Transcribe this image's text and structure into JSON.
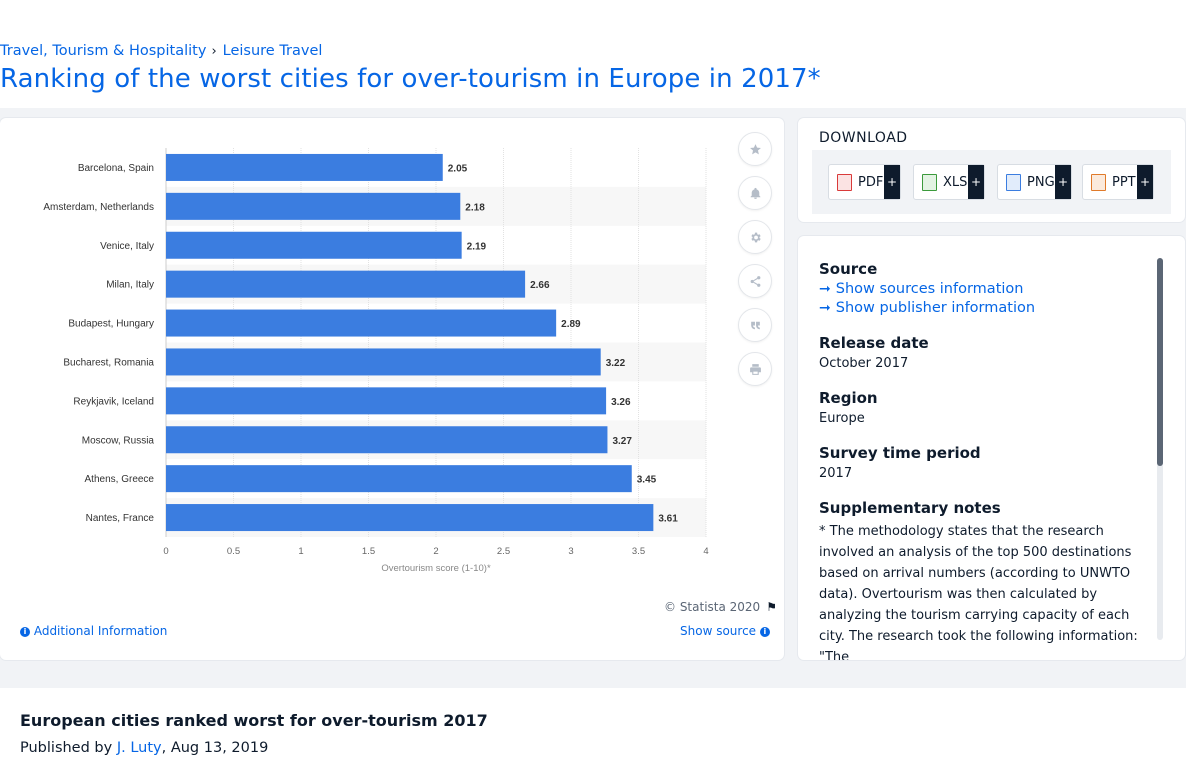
{
  "breadcrumb": {
    "item1": "Travel, Tourism & Hospitality",
    "separator": "›",
    "item2": "Leisure Travel"
  },
  "page_title": "Ranking of the worst cities for over-tourism in Europe in 2017*",
  "chart_data": {
    "type": "bar",
    "orientation": "horizontal",
    "categories": [
      "Barcelona, Spain",
      "Amsterdam, Netherlands",
      "Venice, Italy",
      "Milan, Italy",
      "Budapest, Hungary",
      "Bucharest, Romania",
      "Reykjavik, Iceland",
      "Moscow, Russia",
      "Athens, Greece",
      "Nantes, France"
    ],
    "values": [
      2.05,
      2.18,
      2.19,
      2.66,
      2.89,
      3.22,
      3.26,
      3.27,
      3.45,
      3.61
    ],
    "value_labels": [
      "2.05",
      "2.18",
      "2.19",
      "2.66",
      "2.89",
      "3.22",
      "3.26",
      "3.27",
      "3.45",
      "3.61"
    ],
    "xlabel": "Overtourism score (1-10)*",
    "ylabel": "",
    "xlim": [
      0,
      4
    ],
    "x_ticks": [
      0,
      0.5,
      1,
      1.5,
      2,
      2.5,
      3,
      3.5,
      4
    ],
    "x_tick_labels": [
      "0",
      "0.5",
      "1",
      "1.5",
      "2",
      "2.5",
      "3",
      "3.5",
      "4"
    ],
    "grid": true,
    "bar_color": "#3b7de0"
  },
  "chart_footer": {
    "copyright": "© Statista 2020",
    "additional_info": "Additional Information",
    "show_source": "Show source"
  },
  "tools": [
    "star-icon",
    "bell-icon",
    "gear-icon",
    "share-icon",
    "quote-icon",
    "print-icon"
  ],
  "download": {
    "title": "DOWNLOAD",
    "buttons": [
      {
        "label": "PDF",
        "icon": "pdf-file-icon",
        "color": "#d93a3a"
      },
      {
        "label": "XLS",
        "icon": "xls-file-icon",
        "color": "#3b9a3b"
      },
      {
        "label": "PNG",
        "icon": "png-file-icon",
        "color": "#3b7de0"
      },
      {
        "label": "PPT",
        "icon": "ppt-file-icon",
        "color": "#e07a2a"
      }
    ],
    "plus": "+"
  },
  "meta": {
    "source_heading": "Source",
    "show_sources": "Show sources information",
    "show_publisher": "Show publisher information",
    "release_heading": "Release date",
    "release_value": "October 2017",
    "region_heading": "Region",
    "region_value": "Europe",
    "period_heading": "Survey time period",
    "period_value": "2017",
    "notes_heading": "Supplementary notes",
    "notes_value": "* The methodology states that the research involved an analysis of the top 500 destinations based on arrival numbers (according to UNWTO data). Overtourism was then calculated by analyzing the tourism carrying capacity of each city. The research took the following information: \"The"
  },
  "article": {
    "title": "European cities ranked worst for over-tourism 2017",
    "published_prefix": "Published by ",
    "author": "J. Luty",
    "published_date": ", Aug 13, 2019"
  },
  "colors": {
    "accent": "#0666e5",
    "bar": "#3b7de0",
    "dark": "#0e1b2c"
  }
}
